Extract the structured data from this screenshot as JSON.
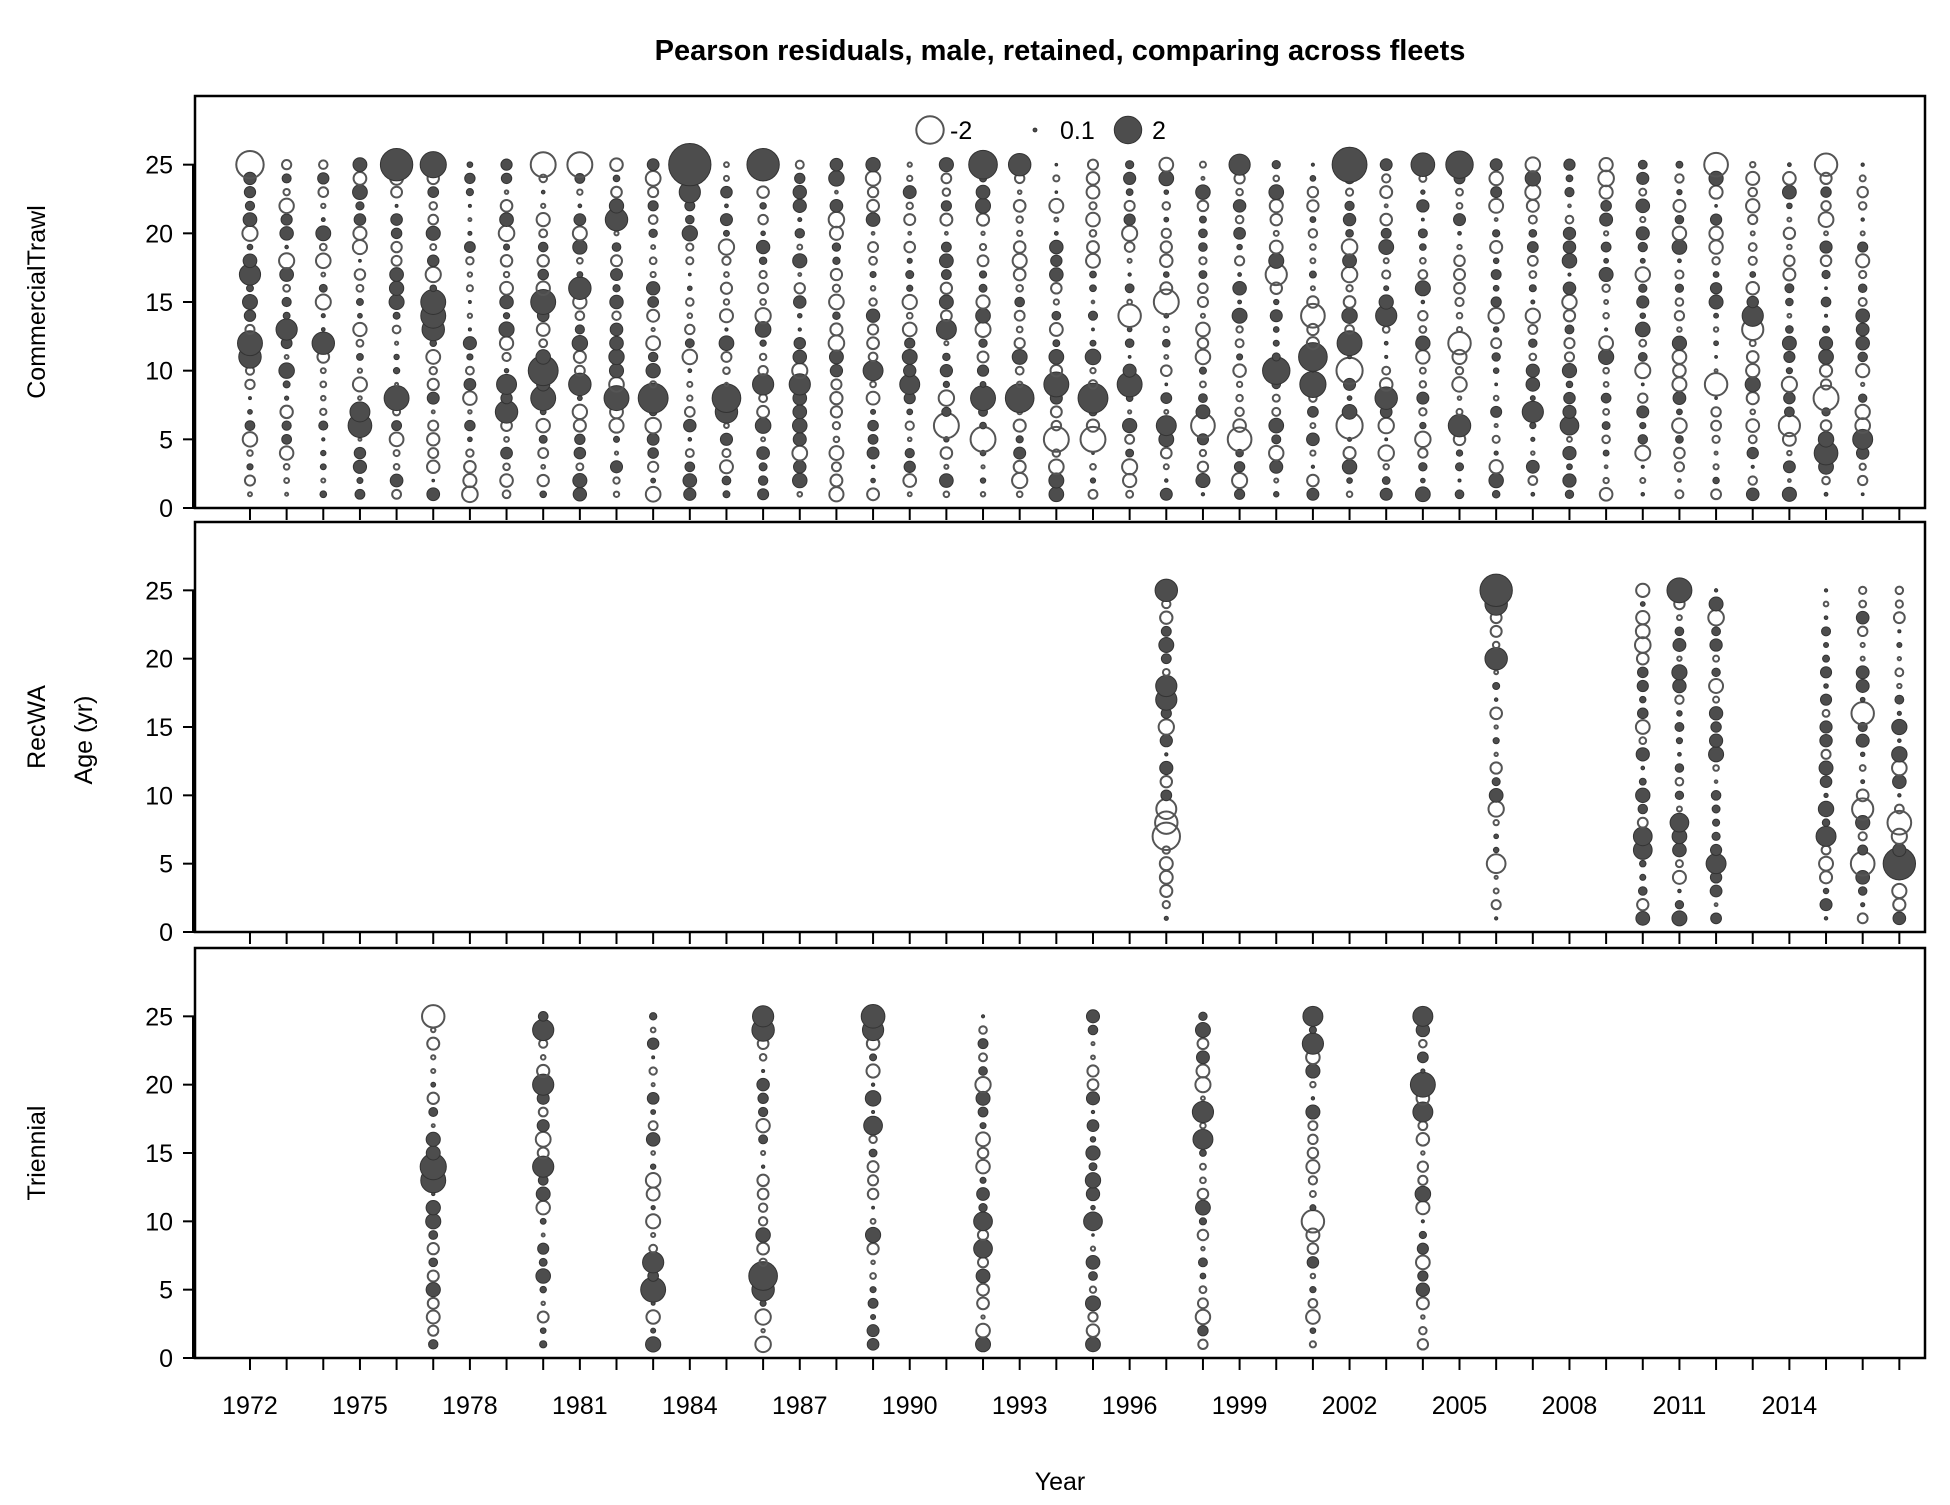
{
  "chart_data": {
    "type": "bubble",
    "title": "Pearson residuals, male, retained, comparing across fleets",
    "xlabel": "Year",
    "ylabel": "Age (yr)",
    "x_ticks": [
      "1972",
      "1975",
      "1978",
      "1981",
      "1984",
      "1987",
      "1990",
      "1993",
      "1996",
      "1999",
      "2002",
      "2005",
      "2008",
      "2011",
      "2014"
    ],
    "y_ticks": [
      "0",
      "5",
      "10",
      "15",
      "20",
      "25"
    ],
    "xlim": [
      1970.5,
      2017.7
    ],
    "ylim": [
      0,
      30
    ],
    "legend": {
      "placement": "top-center",
      "entries": [
        {
          "label": "-2",
          "value": -2
        },
        {
          "label": "0.1",
          "value": 0.1
        },
        {
          "label": "2",
          "value": 2
        }
      ]
    },
    "panels": [
      {
        "name": "CommercialTrawl",
        "years": [
          1972,
          1973,
          1974,
          1975,
          1976,
          1977,
          1978,
          1979,
          1980,
          1981,
          1982,
          1983,
          1984,
          1985,
          1986,
          1987,
          1988,
          1989,
          1990,
          1991,
          1992,
          1993,
          1994,
          1995,
          1996,
          1997,
          1998,
          1999,
          2000,
          2001,
          2002,
          2003,
          2004,
          2005,
          2006,
          2007,
          2008,
          2009,
          2010,
          2011,
          2012,
          2013,
          2014,
          2015,
          2016
        ],
        "ages": "1-25",
        "highlights": [
          {
            "year": 1972,
            "age": 25,
            "r": -2
          },
          {
            "year": 1972,
            "age": 17,
            "r": 1.5
          },
          {
            "year": 1972,
            "age": 12,
            "r": 1.8
          },
          {
            "year": 1972,
            "age": 11,
            "r": 1.6
          },
          {
            "year": 1973,
            "age": 13,
            "r": 1.5
          },
          {
            "year": 1974,
            "age": 12,
            "r": 1.6
          },
          {
            "year": 1975,
            "age": 6,
            "r": 1.7
          },
          {
            "year": 1975,
            "age": 7,
            "r": 1.4
          },
          {
            "year": 1976,
            "age": 25,
            "r": 2.4
          },
          {
            "year": 1976,
            "age": 8,
            "r": 1.8
          },
          {
            "year": 1977,
            "age": 25,
            "r": 1.9
          },
          {
            "year": 1977,
            "age": 15,
            "r": 1.8
          },
          {
            "year": 1977,
            "age": 14,
            "r": 1.8
          },
          {
            "year": 1977,
            "age": 13,
            "r": 1.6
          },
          {
            "year": 1979,
            "age": 9,
            "r": 1.4
          },
          {
            "year": 1979,
            "age": 7,
            "r": 1.6
          },
          {
            "year": 1980,
            "age": 25,
            "r": -1.8
          },
          {
            "year": 1980,
            "age": 15,
            "r": 1.8
          },
          {
            "year": 1980,
            "age": 10,
            "r": 2.2
          },
          {
            "year": 1980,
            "age": 8,
            "r": 1.8
          },
          {
            "year": 1981,
            "age": 25,
            "r": -1.8
          },
          {
            "year": 1981,
            "age": 16,
            "r": 1.6
          },
          {
            "year": 1981,
            "age": 9,
            "r": 1.6
          },
          {
            "year": 1982,
            "age": 21,
            "r": 1.6
          },
          {
            "year": 1982,
            "age": 8,
            "r": 1.8
          },
          {
            "year": 1983,
            "age": 8,
            "r": 2.2
          },
          {
            "year": 1984,
            "age": 25,
            "r": 3.2
          },
          {
            "year": 1984,
            "age": 23,
            "r": 1.5
          },
          {
            "year": 1985,
            "age": 8,
            "r": 2.1
          },
          {
            "year": 1985,
            "age": 7,
            "r": 1.6
          },
          {
            "year": 1986,
            "age": 25,
            "r": 2.4
          },
          {
            "year": 1986,
            "age": 9,
            "r": 1.5
          },
          {
            "year": 1987,
            "age": 9,
            "r": 1.5
          },
          {
            "year": 1989,
            "age": 10,
            "r": 1.4
          },
          {
            "year": 1990,
            "age": 9,
            "r": 1.4
          },
          {
            "year": 1991,
            "age": 13,
            "r": 1.4
          },
          {
            "year": 1991,
            "age": 6,
            "r": -1.8
          },
          {
            "year": 1992,
            "age": 25,
            "r": 2.1
          },
          {
            "year": 1992,
            "age": 8,
            "r": 1.8
          },
          {
            "year": 1992,
            "age": 5,
            "r": -1.8
          },
          {
            "year": 1993,
            "age": 8,
            "r": 2.1
          },
          {
            "year": 1993,
            "age": 25,
            "r": 1.6
          },
          {
            "year": 1994,
            "age": 9,
            "r": 1.8
          },
          {
            "year": 1994,
            "age": 5,
            "r": -1.8
          },
          {
            "year": 1995,
            "age": 8,
            "r": 2.2
          },
          {
            "year": 1995,
            "age": 5,
            "r": -1.8
          },
          {
            "year": 1996,
            "age": 9,
            "r": 1.8
          },
          {
            "year": 1996,
            "age": 14,
            "r": -1.6
          },
          {
            "year": 1997,
            "age": 15,
            "r": -1.8
          },
          {
            "year": 1997,
            "age": 6,
            "r": 1.4
          },
          {
            "year": 1998,
            "age": 6,
            "r": -1.7
          },
          {
            "year": 1999,
            "age": 25,
            "r": 1.5
          },
          {
            "year": 1999,
            "age": 5,
            "r": -1.7
          },
          {
            "year": 2000,
            "age": 10,
            "r": 2.0
          },
          {
            "year": 2000,
            "age": 17,
            "r": -1.5
          },
          {
            "year": 2001,
            "age": 11,
            "r": 2.1
          },
          {
            "year": 2001,
            "age": 9,
            "r": 1.9
          },
          {
            "year": 2001,
            "age": 14,
            "r": -1.7
          },
          {
            "year": 2002,
            "age": 25,
            "r": 2.6
          },
          {
            "year": 2002,
            "age": 12,
            "r": 1.8
          },
          {
            "year": 2002,
            "age": 10,
            "r": -1.9
          },
          {
            "year": 2002,
            "age": 6,
            "r": -1.9
          },
          {
            "year": 2003,
            "age": 14,
            "r": 1.5
          },
          {
            "year": 2003,
            "age": 8,
            "r": 1.6
          },
          {
            "year": 2004,
            "age": 25,
            "r": 1.7
          },
          {
            "year": 2005,
            "age": 25,
            "r": 2.0
          },
          {
            "year": 2005,
            "age": 6,
            "r": 1.6
          },
          {
            "year": 2005,
            "age": 12,
            "r": -1.6
          },
          {
            "year": 2007,
            "age": 7,
            "r": 1.5
          },
          {
            "year": 2008,
            "age": 6,
            "r": 1.3
          },
          {
            "year": 2012,
            "age": 25,
            "r": -1.7
          },
          {
            "year": 2012,
            "age": 9,
            "r": -1.6
          },
          {
            "year": 2013,
            "age": 13,
            "r": -1.5
          },
          {
            "year": 2013,
            "age": 14,
            "r": 1.5
          },
          {
            "year": 2014,
            "age": 6,
            "r": -1.5
          },
          {
            "year": 2015,
            "age": 25,
            "r": -1.6
          },
          {
            "year": 2015,
            "age": 8,
            "r": -1.8
          },
          {
            "year": 2015,
            "age": 4,
            "r": 1.7
          },
          {
            "year": 2016,
            "age": 5,
            "r": 1.4
          },
          {
            "year": 2017,
            "age": 10,
            "r": 1.5
          },
          {
            "year": 2017,
            "age": 7,
            "r": -1.7
          }
        ]
      },
      {
        "name": "RecWA",
        "years": [
          1997,
          2006,
          2010,
          2011,
          2012,
          2015,
          2016,
          2017
        ],
        "ages": "1-25",
        "highlights": [
          {
            "year": 1997,
            "age": 25,
            "r": 1.6
          },
          {
            "year": 1997,
            "age": 18,
            "r": 1.5
          },
          {
            "year": 1997,
            "age": 17,
            "r": 1.5
          },
          {
            "year": 1997,
            "age": 7,
            "r": -2.0
          },
          {
            "year": 1997,
            "age": 8,
            "r": -1.6
          },
          {
            "year": 1997,
            "age": 9,
            "r": -1.4
          },
          {
            "year": 2006,
            "age": 25,
            "r": 2.4
          },
          {
            "year": 2006,
            "age": 24,
            "r": 1.6
          },
          {
            "year": 2006,
            "age": 20,
            "r": 1.6
          },
          {
            "year": 2006,
            "age": 5,
            "r": -1.3
          },
          {
            "year": 2010,
            "age": 7,
            "r": 1.3
          },
          {
            "year": 2010,
            "age": 6,
            "r": 1.3
          },
          {
            "year": 2011,
            "age": 25,
            "r": 1.8
          },
          {
            "year": 2011,
            "age": 8,
            "r": 1.3
          },
          {
            "year": 2012,
            "age": 5,
            "r": 1.4
          },
          {
            "year": 2015,
            "age": 7,
            "r": 1.4
          },
          {
            "year": 2016,
            "age": 16,
            "r": -1.6
          },
          {
            "year": 2016,
            "age": 9,
            "r": -1.5
          },
          {
            "year": 2016,
            "age": 5,
            "r": -1.7
          },
          {
            "year": 2017,
            "age": 8,
            "r": -1.7
          },
          {
            "year": 2017,
            "age": 5,
            "r": 2.4
          }
        ]
      },
      {
        "name": "Triennial",
        "years": [
          1977,
          1980,
          1983,
          1986,
          1989,
          1992,
          1995,
          1998,
          2001,
          2004
        ],
        "ages": "1-25",
        "highlights": [
          {
            "year": 1977,
            "age": 25,
            "r": -1.6
          },
          {
            "year": 1977,
            "age": 14,
            "r": 1.9
          },
          {
            "year": 1977,
            "age": 13,
            "r": 1.8
          },
          {
            "year": 1980,
            "age": 24,
            "r": 1.5
          },
          {
            "year": 1980,
            "age": 20,
            "r": 1.5
          },
          {
            "year": 1980,
            "age": 14,
            "r": 1.5
          },
          {
            "year": 1983,
            "age": 7,
            "r": 1.5
          },
          {
            "year": 1983,
            "age": 5,
            "r": 1.8
          },
          {
            "year": 1986,
            "age": 25,
            "r": 1.5
          },
          {
            "year": 1986,
            "age": 24,
            "r": 1.6
          },
          {
            "year": 1986,
            "age": 6,
            "r": 2.1
          },
          {
            "year": 1986,
            "age": 5,
            "r": 1.6
          },
          {
            "year": 1989,
            "age": 25,
            "r": 1.7
          },
          {
            "year": 1989,
            "age": 24,
            "r": 1.5
          },
          {
            "year": 1989,
            "age": 17,
            "r": 1.3
          },
          {
            "year": 1992,
            "age": 10,
            "r": 1.3
          },
          {
            "year": 1992,
            "age": 8,
            "r": 1.3
          },
          {
            "year": 1995,
            "age": 10,
            "r": 1.3
          },
          {
            "year": 1998,
            "age": 18,
            "r": 1.5
          },
          {
            "year": 1998,
            "age": 16,
            "r": 1.4
          },
          {
            "year": 2001,
            "age": 23,
            "r": 1.5
          },
          {
            "year": 2001,
            "age": 25,
            "r": 1.4
          },
          {
            "year": 2001,
            "age": 10,
            "r": -1.6
          },
          {
            "year": 2004,
            "age": 25,
            "r": 1.4
          },
          {
            "year": 2004,
            "age": 20,
            "r": 1.8
          },
          {
            "year": 2004,
            "age": 18,
            "r": 1.4
          }
        ]
      }
    ]
  }
}
